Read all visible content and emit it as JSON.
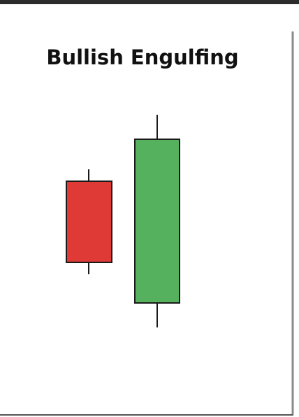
{
  "header": {
    "title": "Bullish Engulfing"
  }
}
